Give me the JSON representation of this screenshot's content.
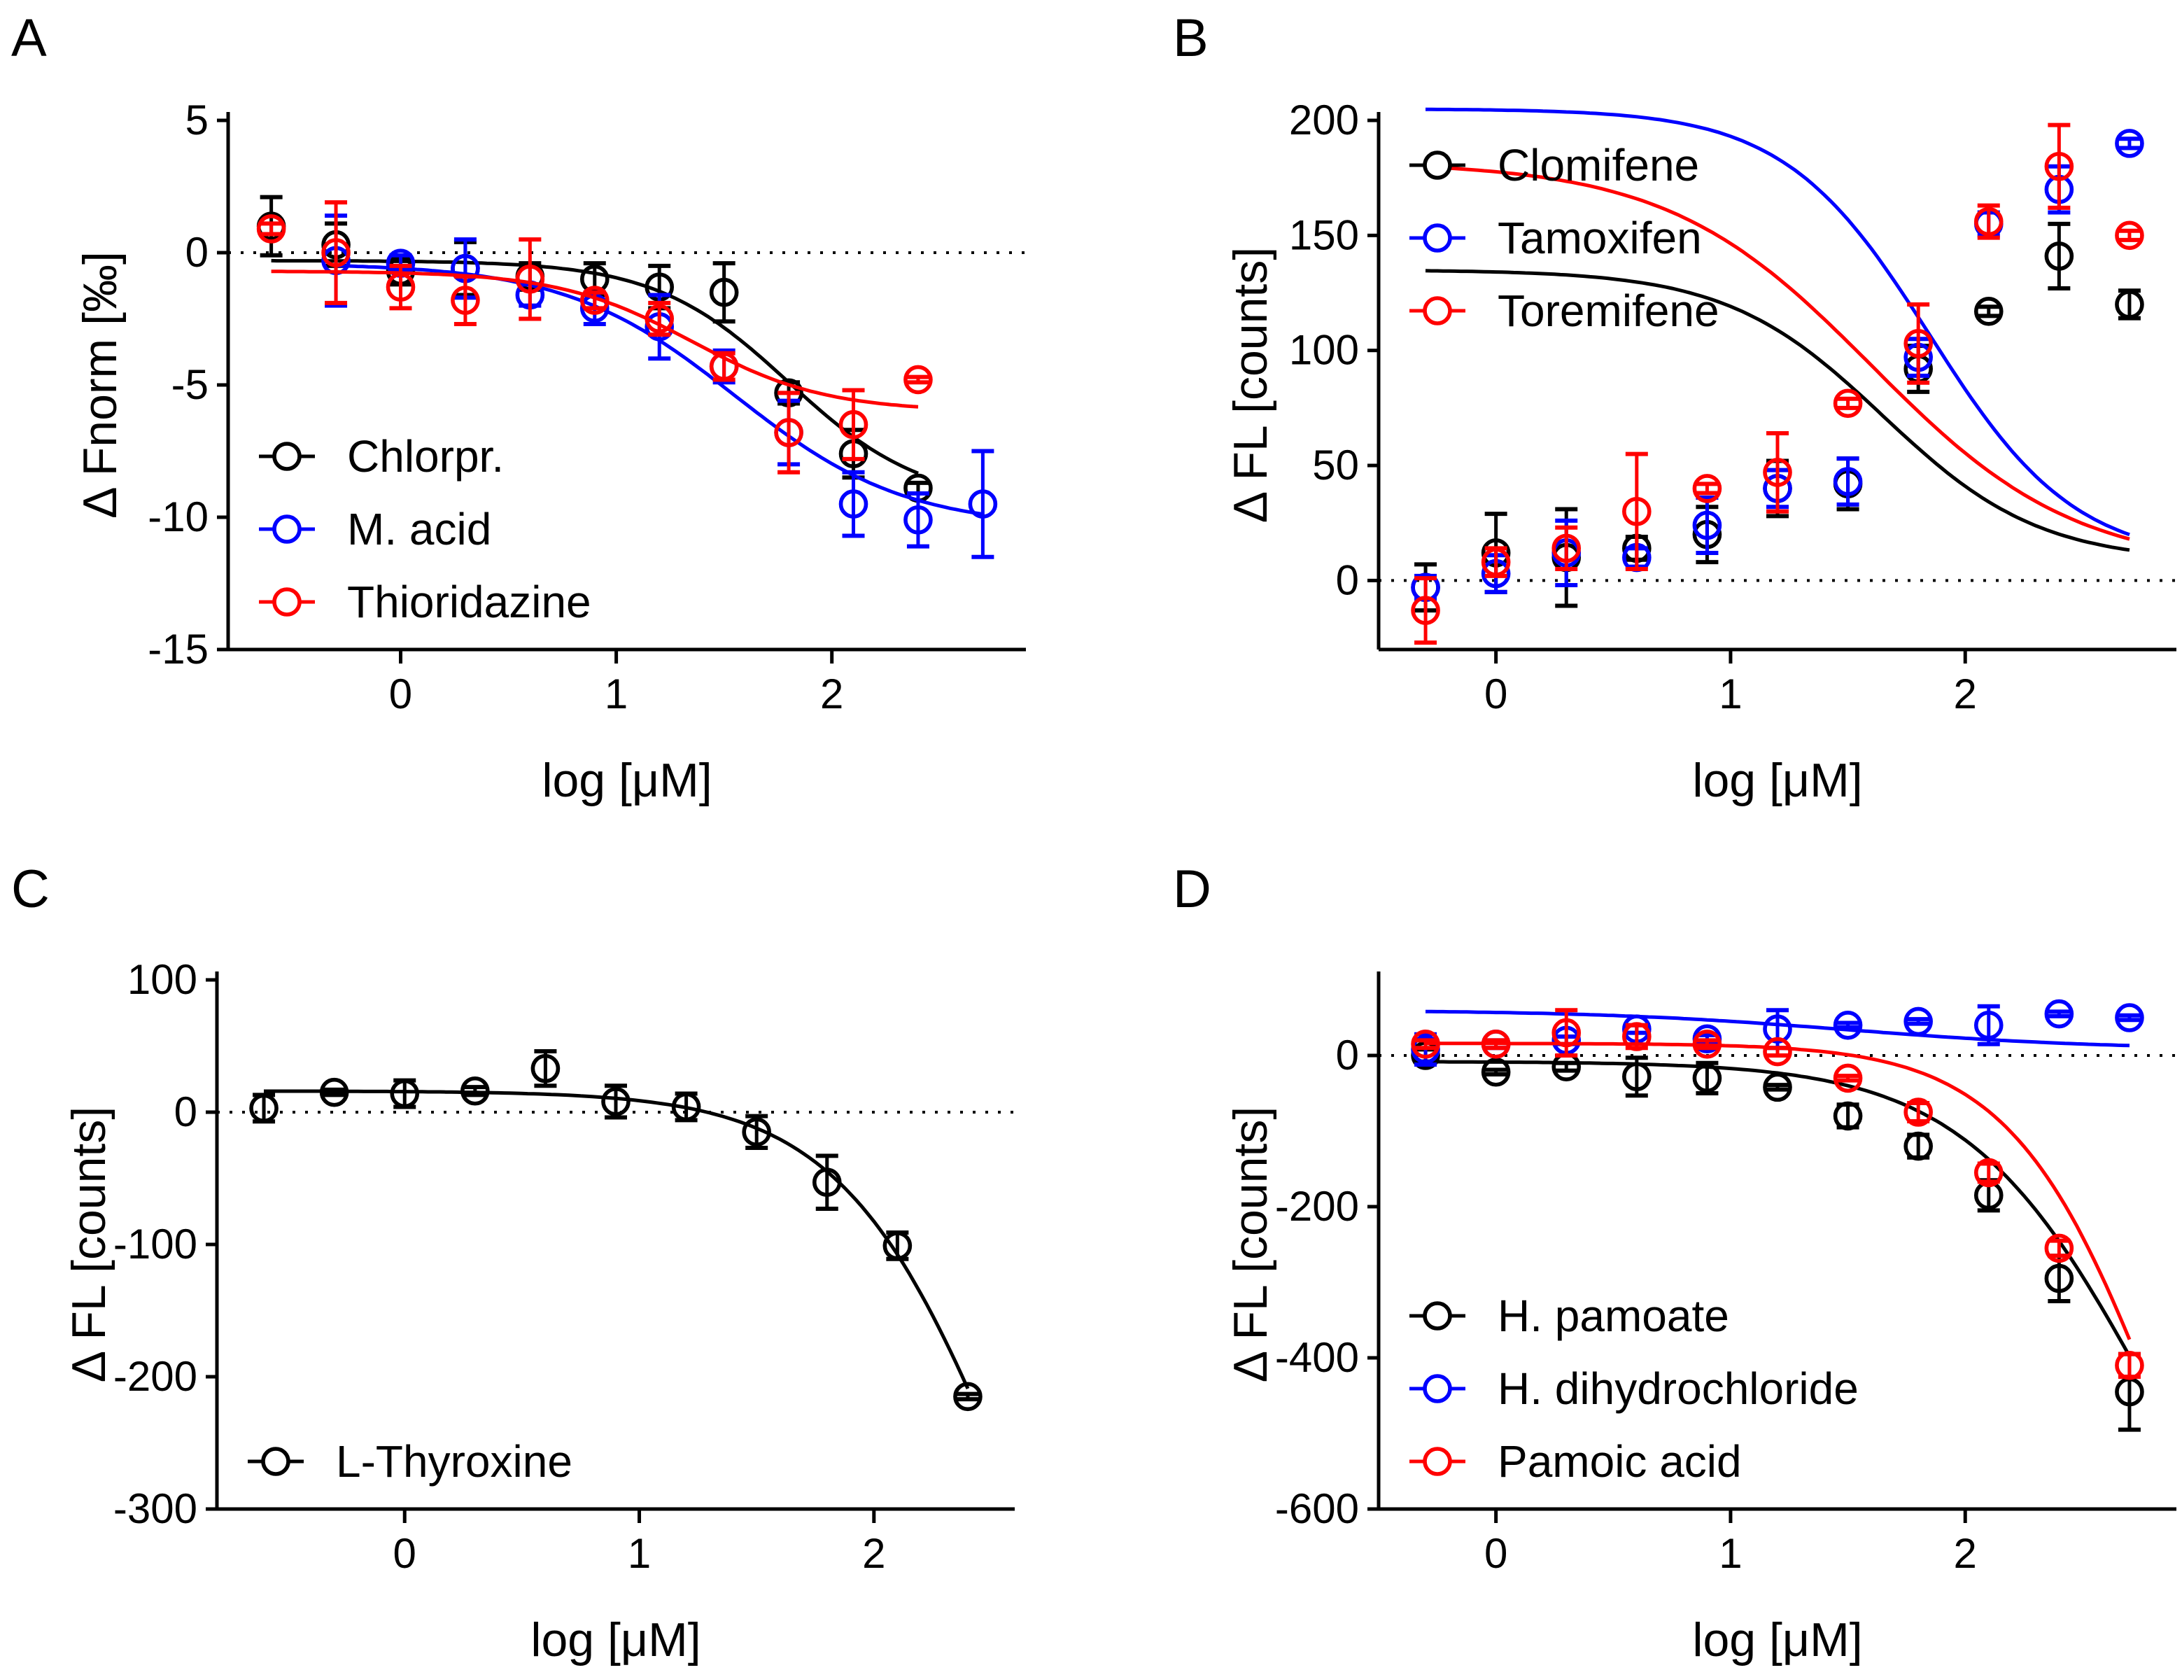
{
  "chart_data": [
    {
      "panel": "A",
      "type": "scatter",
      "xlabel": "log [μM]",
      "ylabel": "Δ Fnorm [‰]",
      "xlim": [
        -0.8,
        2.9
      ],
      "ylim": [
        -15,
        5
      ],
      "xticks": [
        0,
        1,
        2
      ],
      "yticks": [
        5,
        0,
        -5,
        -10,
        -15
      ],
      "zero_line": "dotted",
      "legend": "bottom-left",
      "series": [
        {
          "name": "Chlorpr.",
          "color": "#000000",
          "x": [
            -0.6,
            -0.3,
            0,
            0.3,
            0.6,
            0.9,
            1.2,
            1.5,
            1.8,
            2.1,
            2.4
          ],
          "y": [
            1.0,
            0.3,
            -0.7,
            -0.6,
            -0.9,
            -1.0,
            -1.3,
            -1.5,
            -5.3,
            -7.6,
            -8.9
          ],
          "err": [
            1.1,
            0.8,
            0.5,
            1.0,
            0.5,
            0.6,
            0.8,
            1.1,
            0.4,
            0.9,
            0.2
          ],
          "fit": {
            "top": -0.3,
            "bottom": -9.5,
            "logEC50": 1.8,
            "hill": 1.4
          }
        },
        {
          "name": "M. acid",
          "color": "#0000ff",
          "x": [
            -0.3,
            0,
            0.3,
            0.6,
            0.9,
            1.2,
            1.5,
            1.8,
            2.1,
            2.4,
            2.7
          ],
          "y": [
            -0.3,
            -0.4,
            -0.6,
            -1.6,
            -2.1,
            -2.8,
            -4.3,
            -6.8,
            -9.5,
            -10.1,
            -9.5
          ],
          "err": [
            1.7,
            0.3,
            1.1,
            0.4,
            0.6,
            1.2,
            0.6,
            1.2,
            1.2,
            1.0,
            2.0
          ],
          "fit": {
            "top": -0.4,
            "bottom": -10.4,
            "logEC50": 1.55,
            "hill": 1.1
          }
        },
        {
          "name": "Thioridazine",
          "color": "#ff0000",
          "x": [
            -0.6,
            -0.3,
            0,
            0.3,
            0.6,
            0.9,
            1.2,
            1.5,
            1.8,
            2.1,
            2.4
          ],
          "y": [
            0.9,
            0.0,
            -1.3,
            -1.8,
            -1.0,
            -1.8,
            -2.5,
            -4.3,
            -6.8,
            -6.5,
            -4.8
          ],
          "err": [
            0.2,
            1.9,
            0.8,
            0.9,
            1.5,
            0.3,
            0.6,
            0.5,
            1.5,
            1.3,
            0.1
          ],
          "fit": {
            "top": -0.7,
            "bottom": -6.0,
            "logEC50": 1.35,
            "hill": 1.4
          }
        }
      ]
    },
    {
      "panel": "B",
      "type": "scatter",
      "xlabel": "log [μM]",
      "ylabel": "Δ FL [counts]",
      "xlim": [
        -0.5,
        2.9
      ],
      "ylim": [
        -30,
        200
      ],
      "xticks": [
        0,
        1,
        2
      ],
      "yticks": [
        200,
        150,
        100,
        50,
        0
      ],
      "zero_line": "dotted",
      "legend": "top-left",
      "series": [
        {
          "name": "Clomifene",
          "color": "#000000",
          "x": [
            -0.3,
            0,
            0.3,
            0.6,
            0.9,
            1.2,
            1.5,
            1.8,
            2.1,
            2.4,
            2.7
          ],
          "y": [
            -3,
            12,
            10,
            14,
            20,
            40,
            42,
            92,
            117,
            141,
            120
          ],
          "err": [
            10,
            17,
            21,
            5,
            12,
            12,
            11,
            10,
            2,
            14,
            6
          ],
          "fit": {
            "top": 135,
            "bottom": 8,
            "logEC50": 1.65,
            "hill": 1.3
          }
        },
        {
          "name": "Tamoxifen",
          "color": "#0000ff",
          "x": [
            -0.3,
            0,
            0.3,
            0.6,
            0.9,
            1.2,
            1.5,
            1.8,
            2.1,
            2.4,
            2.7
          ],
          "y": [
            -3,
            3,
            12,
            10,
            24,
            40,
            43,
            97,
            155,
            170,
            190
          ],
          "err": [
            5,
            8,
            14,
            4,
            12,
            8,
            10,
            8,
            5,
            10,
            2
          ],
          "fit": {
            "top": 205,
            "bottom": 8,
            "logEC50": 1.85,
            "hill": 1.4
          }
        },
        {
          "name": "Toremifene",
          "color": "#ff0000",
          "x": [
            -0.3,
            0,
            0.3,
            0.6,
            0.9,
            1.2,
            1.5,
            1.8,
            2.1,
            2.4,
            2.7
          ],
          "y": [
            -13,
            8,
            14,
            30,
            40,
            47,
            77,
            103,
            156,
            180,
            150
          ],
          "err": [
            14,
            6,
            9,
            25,
            2,
            17,
            2,
            17,
            7,
            18,
            2
          ],
          "fit": {
            "top": 182,
            "bottom": 5,
            "logEC50": 1.6,
            "hill": 1.0
          }
        }
      ]
    },
    {
      "panel": "C",
      "type": "scatter",
      "xlabel": "log [μM]",
      "ylabel": "Δ FL [counts]",
      "xlim": [
        -0.8,
        2.6
      ],
      "ylim": [
        -300,
        100
      ],
      "xticks": [
        0,
        1,
        2
      ],
      "yticks": [
        100,
        0,
        -100,
        -200,
        -300
      ],
      "zero_line": "dotted",
      "legend": "bottom-left",
      "series": [
        {
          "name": "L-Thyroxine",
          "color": "#000000",
          "x": [
            -0.6,
            -0.3,
            0,
            0.3,
            0.6,
            0.9,
            1.2,
            1.5,
            1.8,
            2.1,
            2.4
          ],
          "y": [
            3,
            15,
            14,
            16,
            33,
            8,
            4,
            -15,
            -53,
            -101,
            -215
          ],
          "err": [
            10,
            2,
            10,
            3,
            13,
            12,
            10,
            12,
            20,
            10,
            2
          ],
          "fit": {
            "top": 16,
            "bottom": -600,
            "logEC50": 2.6,
            "hill": 1.2
          }
        }
      ]
    },
    {
      "panel": "D",
      "type": "scatter",
      "xlabel": "log [μM]",
      "ylabel": "Δ FL [counts]",
      "xlim": [
        -0.5,
        2.9
      ],
      "ylim": [
        -600,
        100
      ],
      "xticks": [
        0,
        1,
        2
      ],
      "yticks": [
        0,
        -200,
        -400,
        -600
      ],
      "zero_line": "dotted",
      "legend": "bottom-left",
      "series": [
        {
          "name": "H. pamoate",
          "color": "#000000",
          "x": [
            -0.3,
            0,
            0.3,
            0.6,
            0.9,
            1.2,
            1.5,
            1.8,
            2.1,
            2.4,
            2.7
          ],
          "y": [
            0,
            -22,
            -15,
            -28,
            -30,
            -42,
            -80,
            -120,
            -185,
            -295,
            -445
          ],
          "err": [
            8,
            3,
            5,
            25,
            20,
            3,
            15,
            15,
            20,
            30,
            50
          ],
          "fit": {
            "top": -8,
            "bottom": -900,
            "logEC50": 2.8,
            "hill": 1.1
          }
        },
        {
          "name": "H. dihydrochloride",
          "color": "#0000ff",
          "x": [
            -0.3,
            0,
            0.3,
            0.6,
            0.9,
            1.2,
            1.5,
            1.8,
            2.1,
            2.4,
            2.7
          ],
          "y": [
            8,
            15,
            20,
            35,
            22,
            35,
            40,
            45,
            40,
            55,
            50
          ],
          "err": [
            20,
            5,
            5,
            5,
            5,
            25,
            3,
            3,
            25,
            3,
            3
          ],
          "fit": {
            "top": 60,
            "bottom": 8,
            "logEC50": 1.5,
            "hill": 0.8
          }
        },
        {
          "name": "Pamoic acid",
          "color": "#ff0000",
          "x": [
            -0.3,
            0,
            0.3,
            0.6,
            0.9,
            1.2,
            1.5,
            1.8,
            2.1,
            2.4,
            2.7
          ],
          "y": [
            15,
            15,
            30,
            25,
            15,
            5,
            -30,
            -75,
            -155,
            -255,
            -410
          ],
          "err": [
            5,
            5,
            30,
            15,
            5,
            5,
            3,
            12,
            12,
            10,
            15
          ],
          "fit": {
            "top": 16,
            "bottom": -1000,
            "logEC50": 2.85,
            "hill": 1.35
          }
        }
      ]
    }
  ]
}
